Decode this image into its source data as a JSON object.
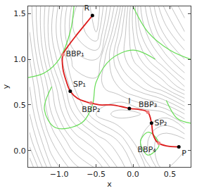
{
  "chart_data": {
    "type": "contour",
    "xlabel": "x",
    "ylabel": "y",
    "xlim": [
      -1.42,
      0.78
    ],
    "ylim": [
      -0.18,
      1.58
    ],
    "xticks": [
      {
        "value": -1.0,
        "label": "−1.0"
      },
      {
        "value": -0.5,
        "label": "−0.5"
      },
      {
        "value": 0.0,
        "label": "0.0"
      },
      {
        "value": 0.5,
        "label": "0.5"
      }
    ],
    "yticks": [
      {
        "value": 0.0,
        "label": "0.0"
      },
      {
        "value": 0.5,
        "label": "0.5"
      },
      {
        "value": 1.0,
        "label": "1.0"
      },
      {
        "value": 1.5,
        "label": "1.5"
      }
    ],
    "grid_x": [
      -1.4,
      -1.1,
      -0.8,
      -0.5,
      -0.2,
      0.1,
      0.4,
      0.7
    ],
    "grid_y": [
      -0.2,
      0.1,
      0.4,
      0.7,
      1.0,
      1.3,
      1.6
    ],
    "z": [
      [
        3.0,
        2.0,
        1.5,
        1.2,
        0.6,
        0.0,
        -0.8,
        -0.6
      ],
      [
        2.5,
        1.6,
        1.0,
        0.6,
        0.2,
        -0.4,
        -1.0,
        -0.9
      ],
      [
        2.2,
        1.2,
        0.4,
        -0.2,
        -0.5,
        -0.4,
        -0.3,
        0.2
      ],
      [
        2.0,
        1.0,
        0.0,
        -0.1,
        0.2,
        0.6,
        1.0,
        1.6
      ],
      [
        1.8,
        0.6,
        -0.3,
        -0.4,
        0.6,
        1.2,
        1.8,
        2.4
      ],
      [
        1.6,
        0.4,
        -0.6,
        -1.0,
        0.4,
        1.6,
        2.4,
        3.0
      ],
      [
        1.5,
        0.5,
        -0.5,
        -1.2,
        0.0,
        1.8,
        2.8,
        3.4
      ]
    ],
    "contour_color": "#9a9a9a",
    "series": [
      {
        "type": "line",
        "color": "#66dd55",
        "x": [
          -1.42,
          -1.2,
          -1.0,
          -0.85,
          -0.8
        ],
        "y": [
          0.8,
          0.85,
          1.0,
          1.3,
          1.58
        ]
      },
      {
        "type": "line",
        "color": "#66dd55",
        "x": [
          -1.1,
          -1.2,
          -1.05,
          -0.7,
          -0.55,
          -0.5,
          -0.3,
          0.0,
          0.3
        ],
        "y": [
          0.7,
          0.45,
          0.25,
          0.3,
          0.5,
          0.75,
          1.0,
          1.1,
          1.0
        ]
      },
      {
        "type": "line",
        "color": "#66dd55",
        "x": [
          0.0,
          0.2,
          0.5,
          0.78
        ],
        "y": [
          1.58,
          1.3,
          1.1,
          1.0
        ]
      },
      {
        "type": "line",
        "color": "#66dd55",
        "x": [
          0.1,
          0.2,
          0.3,
          0.35,
          0.2,
          0.1
        ],
        "y": [
          0.1,
          0.2,
          0.15,
          0.05,
          -0.05,
          0.1
        ]
      },
      {
        "type": "line",
        "color": "#66dd55",
        "x": [
          0.45,
          0.6,
          0.78
        ],
        "y": [
          0.55,
          0.35,
          0.3
        ]
      },
      {
        "type": "line",
        "color": "#dd1c1c",
        "x": [
          -0.55,
          -0.65,
          -0.78,
          -0.9,
          -0.95,
          -0.95,
          -0.9,
          -0.85,
          -0.75,
          -0.62,
          -0.57,
          -0.45,
          -0.3,
          -0.15,
          -0.05,
          0.08,
          0.2,
          0.25,
          0.27,
          0.33,
          0.45,
          0.62
        ],
        "y": [
          1.48,
          1.38,
          1.25,
          1.12,
          1.05,
          0.9,
          0.75,
          0.65,
          0.57,
          0.53,
          0.52,
          0.5,
          0.5,
          0.48,
          0.46,
          0.45,
          0.42,
          0.3,
          0.18,
          0.09,
          0.05,
          0.04
        ]
      }
    ],
    "points": [
      {
        "label": "R",
        "x": -0.55,
        "y": 1.48,
        "color": "#000000"
      },
      {
        "label": "BBP₁",
        "x": -0.95,
        "y": 1.05,
        "color": "#f08080"
      },
      {
        "label": "SP₁",
        "x": -0.85,
        "y": 0.65,
        "color": "#000000"
      },
      {
        "label": "BBP₂",
        "x": -0.57,
        "y": 0.52,
        "color": "#f08080"
      },
      {
        "label": "I",
        "x": -0.05,
        "y": 0.46,
        "color": "#000000"
      },
      {
        "label": "BBP₃",
        "x": 0.2,
        "y": 0.42,
        "color": "#f08080"
      },
      {
        "label": "SP₂",
        "x": 0.25,
        "y": 0.3,
        "color": "#000000"
      },
      {
        "label": "BBP₄",
        "x": 0.35,
        "y": 0.08,
        "color": "#f08080"
      },
      {
        "label": "P",
        "x": 0.62,
        "y": 0.04,
        "color": "#000000"
      }
    ]
  }
}
